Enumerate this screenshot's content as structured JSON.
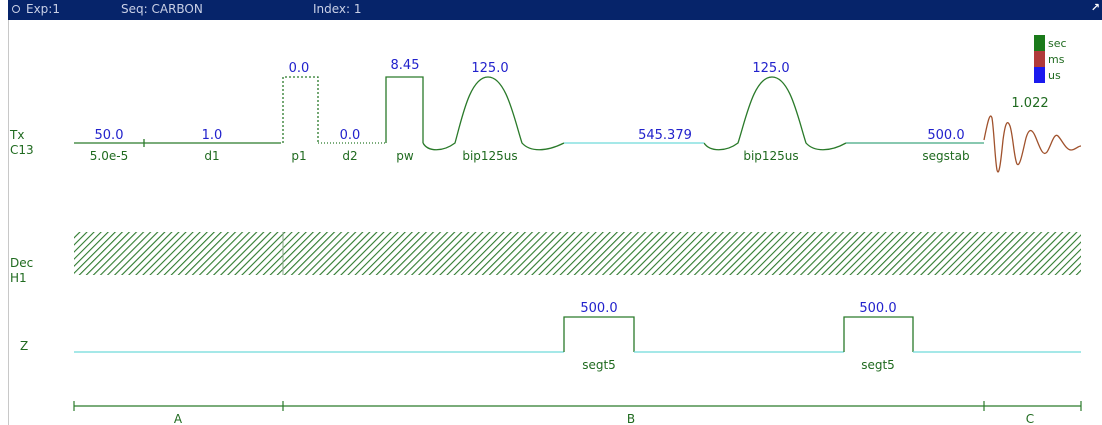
{
  "titlebar": {
    "exp": "Exp:1",
    "seq": "Seq: CARBON",
    "index": "Index: 1"
  },
  "legend": [
    {
      "label": "sec",
      "color": "#1a7a1a"
    },
    {
      "label": "ms",
      "color": "#b03a3a"
    },
    {
      "label": "us",
      "color": "#1a1aee"
    }
  ],
  "channels": {
    "tx": {
      "line1": "Tx",
      "line2": "C13"
    },
    "dec": {
      "line1": "Dec",
      "line2": "H1"
    },
    "z": {
      "line1": "Z"
    }
  },
  "tx_events": {
    "d_first_value": "50.0",
    "d_first_name": "5.0e-5",
    "d1_value": "1.0",
    "d1_name": "d1",
    "p1_value": "0.0",
    "p1_name": "p1",
    "d2_value": "0.0",
    "d2_name": "d2",
    "pw_value": "8.45",
    "pw_name": "pw",
    "bip1_value": "125.0",
    "bip1_name": "bip125us",
    "delay_value": "545.379",
    "bip2_value": "125.0",
    "bip2_name": "bip125us",
    "segstab_value": "500.0",
    "segstab_name": "segstab",
    "acq_value": "1.022"
  },
  "z_events": {
    "g1_value": "500.0",
    "g1_name": "segt5",
    "g2_value": "500.0",
    "g2_name": "segt5"
  },
  "segments": {
    "a": "A",
    "b": "B",
    "c": "C"
  }
}
